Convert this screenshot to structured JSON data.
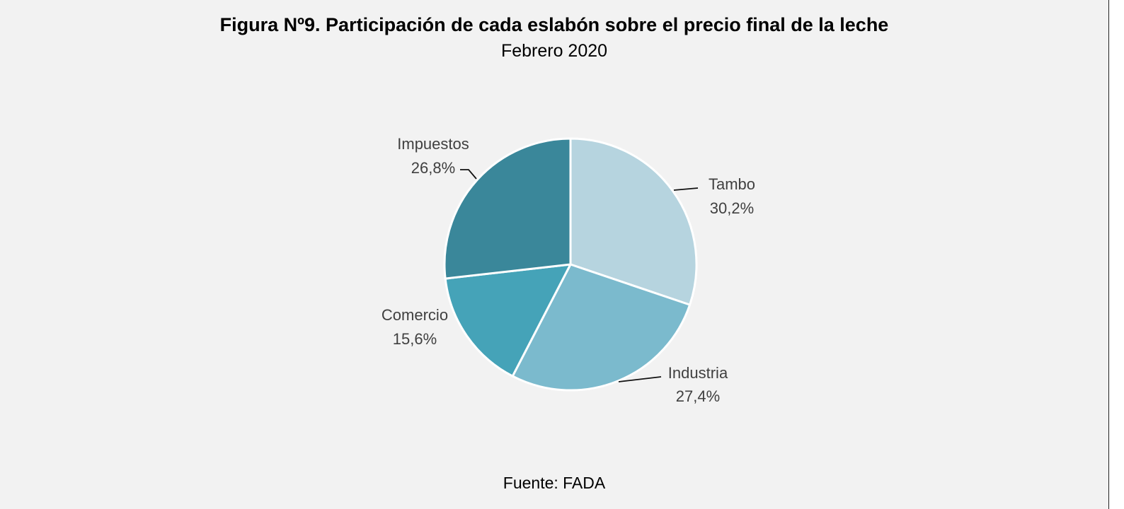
{
  "figure": {
    "title": "Figura Nº9. Participación de cada eslabón sobre el precio final de la leche",
    "subtitle": "Febrero 2020",
    "source": "Fuente: FADA"
  },
  "chart_data": {
    "type": "pie",
    "title": "Figura Nº9. Participación de cada eslabón sobre el precio final de la leche",
    "subtitle": "Febrero 2020",
    "slices": [
      {
        "label": "Tambo",
        "value": 30.2,
        "display": "30,2%",
        "color": "#b6d4df"
      },
      {
        "label": "Industria",
        "value": 27.4,
        "display": "27,4%",
        "color": "#7bbacd"
      },
      {
        "label": "Comercio",
        "value": 15.6,
        "display": "15,6%",
        "color": "#45a3b8"
      },
      {
        "label": "Impuestos",
        "value": 26.8,
        "display": "26,8%",
        "color": "#3a879a"
      }
    ],
    "start": "12 o'clock, clockwise",
    "legend": "none (data labels with leader lines)"
  }
}
